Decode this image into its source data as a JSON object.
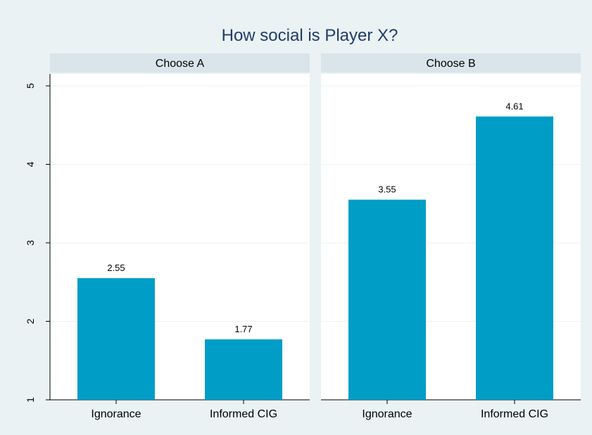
{
  "chart_data": {
    "type": "bar",
    "title": "How social is Player X?",
    "xlabel": "",
    "ylabel": "",
    "ylim": [
      1,
      5
    ],
    "yticks": [
      1,
      2,
      3,
      4,
      5
    ],
    "grid": true,
    "legend": "none",
    "colors": {
      "outer_background": "#eaf2f3",
      "plot_background": "#ffffff",
      "panel_header": "#d9e5ea",
      "bar": "#009dc7",
      "title_text": "#1f3d6b",
      "text": "#000000",
      "gridline": "#eef2f5"
    },
    "panels": [
      {
        "header": "Choose A",
        "categories": [
          "Ignorance",
          "Informed CIG"
        ],
        "values": [
          2.55,
          1.77
        ],
        "labels": [
          "2.55",
          "1.77"
        ]
      },
      {
        "header": "Choose B",
        "categories": [
          "Ignorance",
          "Informed CIG"
        ],
        "values": [
          3.55,
          4.61
        ],
        "labels": [
          "3.55",
          "4.61"
        ]
      }
    ]
  }
}
